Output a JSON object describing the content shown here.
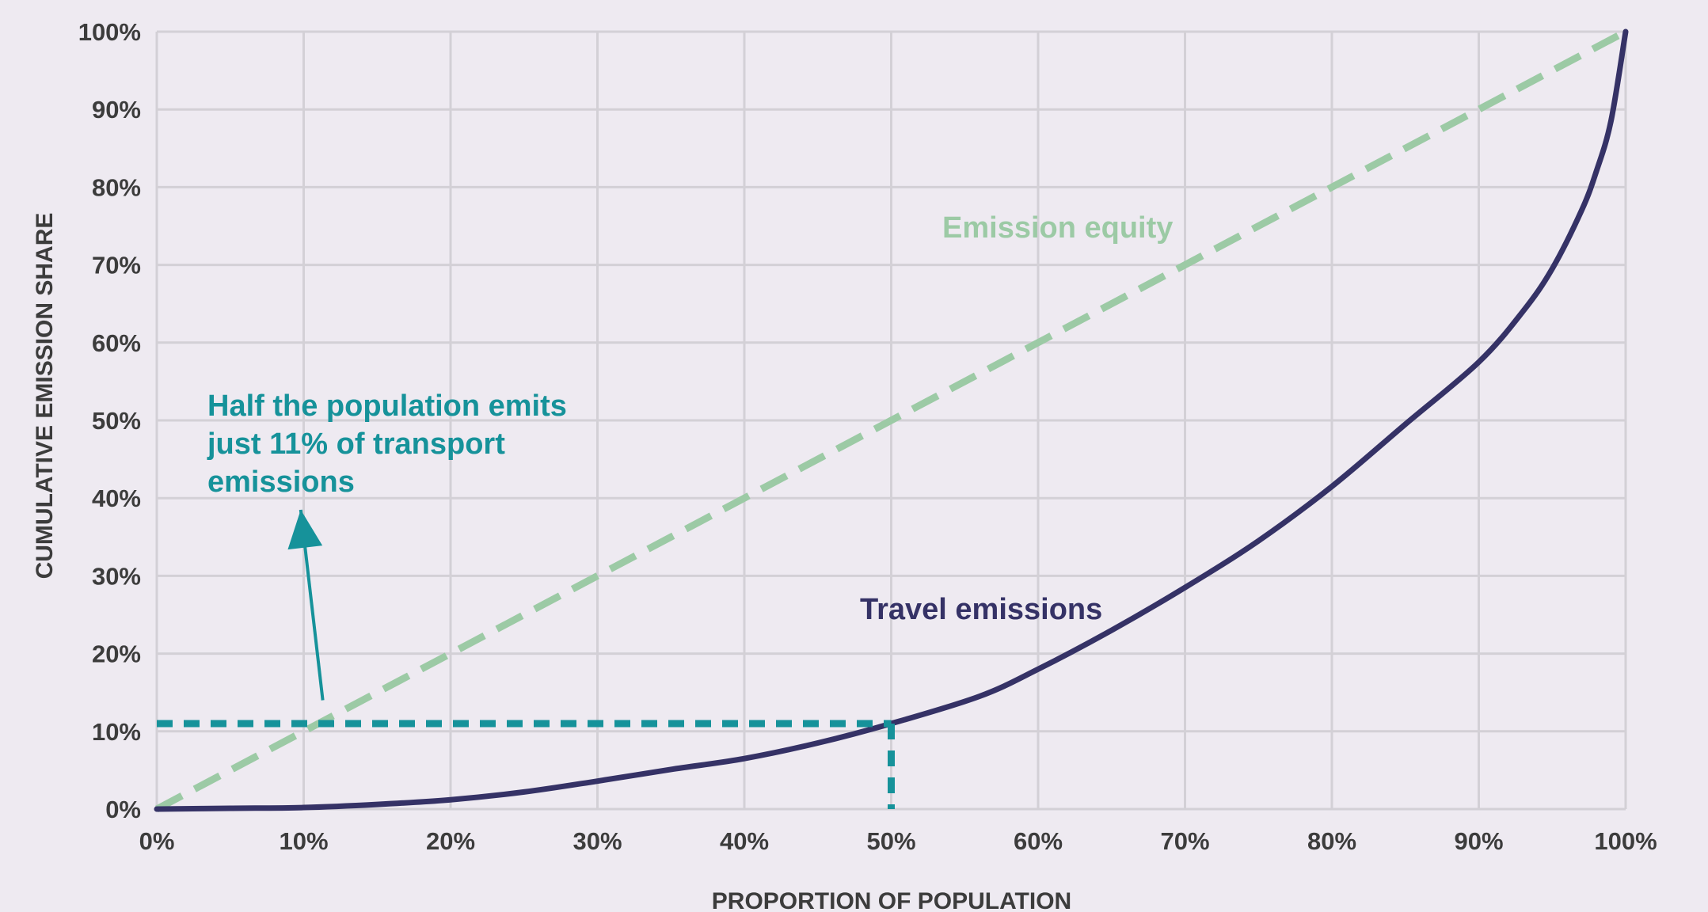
{
  "chart_data": {
    "type": "line",
    "xlabel": "PROPORTION OF POPULATION",
    "ylabel": "CUMULATIVE EMISSION SHARE",
    "xlim": [
      0,
      100
    ],
    "ylim": [
      0,
      100
    ],
    "grid": true,
    "x_ticks": [
      "0%",
      "10%",
      "20%",
      "30%",
      "40%",
      "50%",
      "60%",
      "70%",
      "80%",
      "90%",
      "100%"
    ],
    "y_ticks": [
      "0%",
      "10%",
      "20%",
      "30%",
      "40%",
      "50%",
      "60%",
      "70%",
      "80%",
      "90%",
      "100%"
    ],
    "series": [
      {
        "name": "Emission equity",
        "style": "dashed",
        "color": "#9ccaa5",
        "x": [
          0,
          100
        ],
        "y": [
          0,
          100
        ]
      },
      {
        "name": "Travel emissions",
        "style": "solid",
        "color": "#353266",
        "x": [
          0,
          5,
          10,
          15,
          20,
          25,
          30,
          35,
          40,
          45,
          50,
          56,
          60,
          65,
          70,
          75,
          80,
          85,
          90,
          93,
          95,
          97,
          98,
          99,
          100
        ],
        "y": [
          0,
          0.1,
          0.2,
          0.6,
          1.2,
          2.2,
          3.6,
          5.1,
          6.5,
          8.5,
          11,
          14.5,
          18,
          23,
          28.5,
          34.5,
          41.5,
          49.5,
          57.5,
          64,
          69.5,
          77,
          82,
          88.5,
          100
        ]
      }
    ],
    "reference_lines": {
      "color": "#16929a",
      "style": "dashed",
      "x": 50,
      "y": 11
    },
    "annotation": {
      "lines": [
        "Half the population emits",
        "just 11% of transport",
        "emissions"
      ],
      "color": "#16929a",
      "arrow_from": [
        11.3,
        14
      ],
      "arrow_to": [
        9.8,
        38.5
      ]
    }
  },
  "colors": {
    "background": "#eeeaf1",
    "grid": "#d3d0d6",
    "text": "#3c3c3c"
  }
}
